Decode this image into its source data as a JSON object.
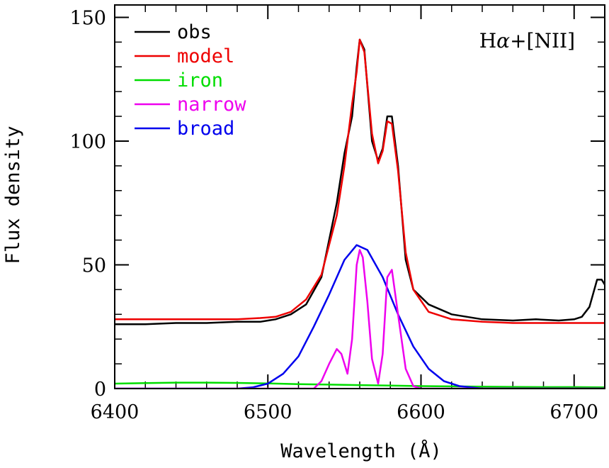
{
  "chart_data": {
    "type": "line",
    "title": "",
    "xlabel": "Wavelength (Å)",
    "ylabel": "Flux density",
    "xlim": [
      6400,
      6720
    ],
    "ylim": [
      0,
      155
    ],
    "x_ticks": [
      6400,
      6500,
      6600,
      6700
    ],
    "x_tick_labels": [
      "6400",
      "6500",
      "6600",
      "6700"
    ],
    "y_ticks": [
      0,
      50,
      100,
      150
    ],
    "y_tick_labels": [
      "0",
      "50",
      "100",
      "150"
    ],
    "annotation": {
      "prefix": "H",
      "greek": "α",
      "suffix": "+[NII]",
      "position": "top-right"
    },
    "legend_position": "top-left",
    "grid": false,
    "series": [
      {
        "name": "obs",
        "color": "#000000",
        "points": [
          [
            6400,
            26
          ],
          [
            6420,
            26
          ],
          [
            6440,
            26.5
          ],
          [
            6460,
            26.5
          ],
          [
            6480,
            27
          ],
          [
            6495,
            27
          ],
          [
            6505,
            28
          ],
          [
            6515,
            30
          ],
          [
            6525,
            34
          ],
          [
            6535,
            45
          ],
          [
            6545,
            75
          ],
          [
            6550,
            95
          ],
          [
            6555,
            110
          ],
          [
            6558,
            130
          ],
          [
            6560,
            141
          ],
          [
            6563,
            137
          ],
          [
            6568,
            100
          ],
          [
            6572,
            92
          ],
          [
            6575,
            97
          ],
          [
            6578,
            110
          ],
          [
            6581,
            110
          ],
          [
            6585,
            90
          ],
          [
            6590,
            52
          ],
          [
            6595,
            40
          ],
          [
            6605,
            34
          ],
          [
            6620,
            30
          ],
          [
            6640,
            28
          ],
          [
            6660,
            27.5
          ],
          [
            6675,
            28
          ],
          [
            6690,
            27.5
          ],
          [
            6700,
            28
          ],
          [
            6705,
            29
          ],
          [
            6710,
            33
          ],
          [
            6715,
            44
          ],
          [
            6718,
            44
          ],
          [
            6720,
            42
          ]
        ]
      },
      {
        "name": "model",
        "color": "#ee0000",
        "points": [
          [
            6400,
            28
          ],
          [
            6420,
            28
          ],
          [
            6440,
            28
          ],
          [
            6460,
            28
          ],
          [
            6480,
            28
          ],
          [
            6495,
            28.5
          ],
          [
            6505,
            29
          ],
          [
            6515,
            31
          ],
          [
            6525,
            36
          ],
          [
            6535,
            46
          ],
          [
            6545,
            70
          ],
          [
            6550,
            90
          ],
          [
            6555,
            115
          ],
          [
            6558,
            128
          ],
          [
            6560,
            141
          ],
          [
            6563,
            136
          ],
          [
            6568,
            103
          ],
          [
            6572,
            91
          ],
          [
            6575,
            96
          ],
          [
            6578,
            108
          ],
          [
            6581,
            107
          ],
          [
            6585,
            88
          ],
          [
            6590,
            55
          ],
          [
            6595,
            40
          ],
          [
            6605,
            31
          ],
          [
            6620,
            28
          ],
          [
            6640,
            27
          ],
          [
            6660,
            26.5
          ],
          [
            6680,
            26.5
          ],
          [
            6700,
            26.5
          ],
          [
            6720,
            26.5
          ]
        ]
      },
      {
        "name": "iron",
        "color": "#00dd00",
        "points": [
          [
            6400,
            2
          ],
          [
            6420,
            2.2
          ],
          [
            6440,
            2.4
          ],
          [
            6460,
            2.4
          ],
          [
            6480,
            2.3
          ],
          [
            6500,
            2.1
          ],
          [
            6520,
            1.8
          ],
          [
            6540,
            1.6
          ],
          [
            6560,
            1.4
          ],
          [
            6580,
            1.2
          ],
          [
            6600,
            1.0
          ],
          [
            6620,
            0.9
          ],
          [
            6640,
            0.8
          ],
          [
            6660,
            0.7
          ],
          [
            6680,
            0.6
          ],
          [
            6700,
            0.6
          ],
          [
            6720,
            0.5
          ]
        ]
      },
      {
        "name": "narrow",
        "color": "#ee00ee",
        "points": [
          [
            6400,
            0
          ],
          [
            6520,
            0
          ],
          [
            6530,
            0
          ],
          [
            6535,
            3
          ],
          [
            6540,
            10
          ],
          [
            6545,
            16
          ],
          [
            6548,
            14
          ],
          [
            6552,
            6
          ],
          [
            6555,
            20
          ],
          [
            6558,
            50
          ],
          [
            6560,
            56
          ],
          [
            6562,
            53
          ],
          [
            6565,
            35
          ],
          [
            6568,
            12
          ],
          [
            6572,
            2
          ],
          [
            6575,
            14
          ],
          [
            6578,
            45
          ],
          [
            6581,
            48
          ],
          [
            6585,
            30
          ],
          [
            6590,
            8
          ],
          [
            6595,
            1
          ],
          [
            6600,
            0
          ],
          [
            6720,
            0
          ]
        ]
      },
      {
        "name": "broad",
        "color": "#0000ee",
        "points": [
          [
            6400,
            0
          ],
          [
            6480,
            0
          ],
          [
            6490,
            0.5
          ],
          [
            6500,
            2
          ],
          [
            6510,
            6
          ],
          [
            6520,
            13
          ],
          [
            6530,
            25
          ],
          [
            6540,
            38
          ],
          [
            6550,
            52
          ],
          [
            6558,
            58
          ],
          [
            6565,
            56
          ],
          [
            6575,
            45
          ],
          [
            6585,
            30
          ],
          [
            6595,
            17
          ],
          [
            6605,
            8
          ],
          [
            6615,
            3
          ],
          [
            6625,
            1
          ],
          [
            6640,
            0
          ],
          [
            6720,
            0
          ]
        ]
      }
    ]
  }
}
